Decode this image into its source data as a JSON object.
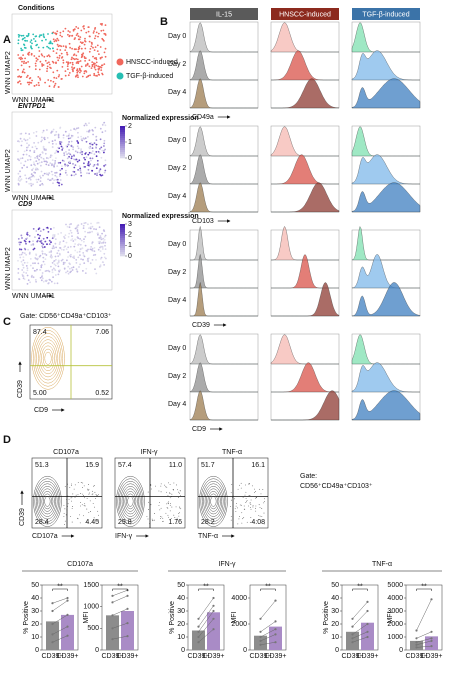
{
  "panel_labels": [
    "A",
    "B",
    "C",
    "D"
  ],
  "umap": {
    "axis_x": "WNN UMAP1",
    "axis_y": "WNN UMAP2",
    "plots": [
      {
        "title": "Conditions",
        "legend": [
          {
            "name": "HNSCC-induced",
            "color": "#f0675c"
          },
          {
            "name": "TGF-β-induced",
            "color": "#27bfb3"
          }
        ]
      },
      {
        "title": "ENTPD1",
        "colorbar_title": "Normalized expression",
        "colorbar_ticks": [
          0,
          1,
          2
        ]
      },
      {
        "title": "CD9",
        "colorbar_title": "Normalized expression",
        "colorbar_ticks": [
          0,
          1,
          2,
          3
        ]
      }
    ]
  },
  "flow_histograms": {
    "columns": [
      {
        "name": "IL-15",
        "color": "#5a5a5a"
      },
      {
        "name": "HNSCC-induced",
        "color": "#8c2a1e"
      },
      {
        "name": "TGF-β-induced",
        "color": "#3b73a8"
      }
    ],
    "days": [
      "Day 0",
      "Day 2",
      "Day 4"
    ],
    "markers": [
      "CD49a",
      "CD103",
      "CD39",
      "CD9"
    ]
  },
  "gate_plot": {
    "title": "Gate: CD56⁺CD49a⁺CD103⁺",
    "quadrants": [
      "87.4",
      "7.06",
      "5.00",
      "0.52"
    ],
    "xlabel": "CD9",
    "ylabel": "CD39"
  },
  "contour_plots": {
    "ylabel": "CD39",
    "gate": [
      "Gate:",
      "CD56⁺CD49a⁺CD103⁺"
    ],
    "plots": [
      {
        "title": "CD107a",
        "quadrants": [
          "51.3",
          "15.9",
          "28.4",
          "4.45"
        ]
      },
      {
        "title": "IFN-γ",
        "quadrants": [
          "57.4",
          "11.0",
          "29.8",
          "1.76"
        ]
      },
      {
        "title": "TNF-α",
        "quadrants": [
          "51.7",
          "16.1",
          "28.2",
          "4.08"
        ]
      }
    ]
  },
  "bar_panels": [
    {
      "title": "CD107a",
      "categories": [
        "CD39−",
        "CD39+"
      ],
      "colors": [
        "#8c8c8c",
        "#a98bc6"
      ],
      "charts": [
        {
          "ylabel": "% Positive",
          "ylim": [
            0,
            50
          ],
          "yticks": [
            0,
            10,
            20,
            30,
            40,
            50
          ],
          "values": [
            22,
            27
          ],
          "significance": "**",
          "pairs": [
            [
              36,
              40
            ],
            [
              30,
              38
            ],
            [
              20,
              27
            ],
            [
              12,
              18
            ],
            [
              6,
              11
            ]
          ]
        },
        {
          "ylabel": "MFI",
          "ylim": [
            0,
            1500
          ],
          "yticks": [
            0,
            500,
            1000,
            1500
          ],
          "values": [
            800,
            900
          ],
          "significance": "**",
          "pairs": [
            [
              1250,
              1380
            ],
            [
              1100,
              1250
            ],
            [
              800,
              950
            ],
            [
              500,
              620
            ],
            [
              250,
              320
            ]
          ]
        }
      ]
    },
    {
      "title": "IFN-γ",
      "categories": [
        "CD39−",
        "CD39+"
      ],
      "colors": [
        "#8c8c8c",
        "#a98bc6"
      ],
      "charts": [
        {
          "ylabel": "% Positive",
          "ylim": [
            0,
            50
          ],
          "yticks": [
            0,
            10,
            20,
            30,
            40,
            50
          ],
          "values": [
            15,
            29
          ],
          "significance": "**",
          "pairs": [
            [
              24,
              40
            ],
            [
              18,
              34
            ],
            [
              14,
              30
            ],
            [
              10,
              24
            ],
            [
              6,
              16
            ]
          ]
        },
        {
          "ylabel": "MFI",
          "ylim": [
            0,
            5000
          ],
          "yticks": [
            0,
            2000,
            4000
          ],
          "values": [
            1100,
            1800
          ],
          "significance": "**",
          "pairs": [
            [
              2400,
              3800
            ],
            [
              1400,
              2200
            ],
            [
              1000,
              1600
            ],
            [
              700,
              1200
            ],
            [
              400,
              600
            ]
          ]
        }
      ]
    },
    {
      "title": "TNF-α",
      "categories": [
        "CD39−",
        "CD39+"
      ],
      "colors": [
        "#8c8c8c",
        "#a98bc6"
      ],
      "charts": [
        {
          "ylabel": "% Positive",
          "ylim": [
            0,
            50
          ],
          "yticks": [
            0,
            10,
            20,
            30,
            40,
            50
          ],
          "values": [
            14,
            21
          ],
          "significance": "**",
          "pairs": [
            [
              24,
              37
            ],
            [
              18,
              30
            ],
            [
              12,
              20
            ],
            [
              9,
              14
            ],
            [
              6,
              10
            ]
          ]
        },
        {
          "ylabel": "MFI",
          "ylim": [
            0,
            5000
          ],
          "yticks": [
            0,
            1000,
            2000,
            3000,
            4000,
            5000
          ],
          "values": [
            700,
            1050
          ],
          "significance": "**",
          "pairs": [
            [
              1500,
              3900
            ],
            [
              900,
              1400
            ],
            [
              600,
              900
            ],
            [
              400,
              700
            ],
            [
              200,
              300
            ]
          ]
        }
      ]
    }
  ]
}
